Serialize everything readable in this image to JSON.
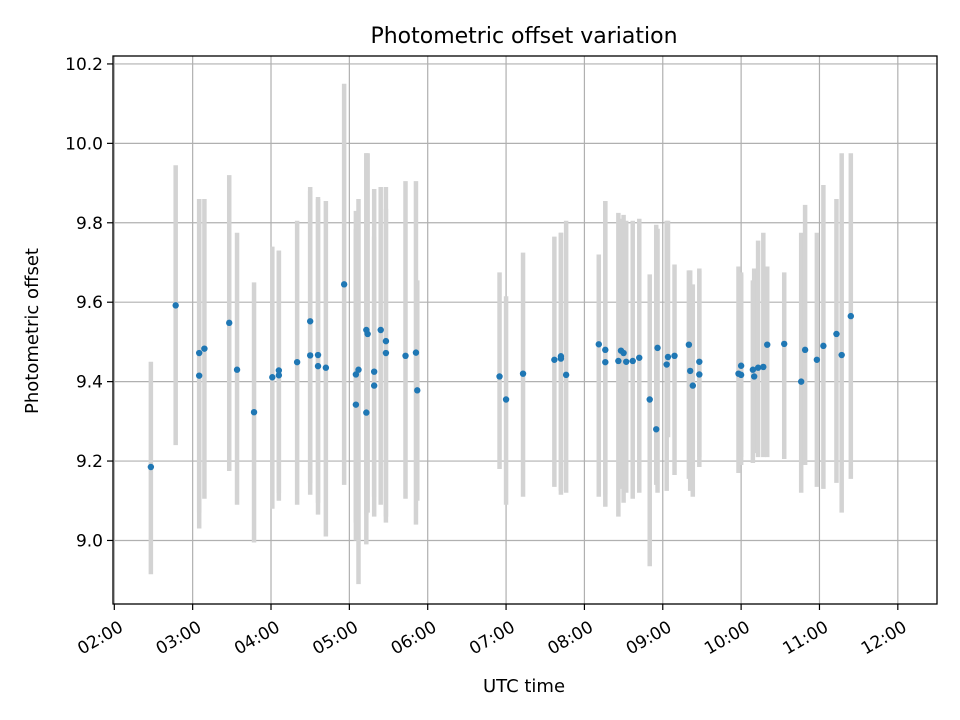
{
  "chart_data": {
    "type": "scatter",
    "title": "Photometric offset variation",
    "xlabel": "UTC time",
    "ylabel": "Photometric offset",
    "x_tick_labels": [
      "02:00",
      "03:00",
      "04:00",
      "05:00",
      "06:00",
      "07:00",
      "08:00",
      "09:00",
      "10:00",
      "11:00",
      "12:00"
    ],
    "y_tick_labels": [
      "9.0",
      "9.2",
      "9.4",
      "9.6",
      "9.8",
      "10.0",
      "10.2"
    ],
    "x_ticks": [
      "02:00",
      "03:00",
      "04:00",
      "05:00",
      "06:00",
      "07:00",
      "08:00",
      "09:00",
      "10:00",
      "11:00",
      "12:00"
    ],
    "y_ticks": [
      9.0,
      9.2,
      9.4,
      9.6,
      9.8,
      10.0,
      10.2
    ],
    "xlim": [
      "01:59",
      "12:30"
    ],
    "ylim": [
      8.84,
      10.22
    ],
    "grid": true,
    "colors": {
      "points": "#1f77b4",
      "errorbars": "#d3d3d3",
      "grid": "#b0b0b0"
    },
    "series": [
      {
        "x": [
          "02:28",
          "02:47",
          "03:05",
          "03:05",
          "03:09",
          "03:28",
          "03:34",
          "03:47",
          "04:01",
          "04:06",
          "04:06",
          "04:20",
          "04:30",
          "04:30",
          "04:36",
          "04:36",
          "04:42",
          "04:56",
          "05:05",
          "05:05",
          "05:07",
          "05:13",
          "05:13",
          "05:14",
          "05:19",
          "05:19",
          "05:24",
          "05:28",
          "05:28",
          "05:43",
          "05:51",
          "05:52",
          "06:55",
          "07:00",
          "07:13",
          "07:37",
          "07:42",
          "07:42",
          "07:46",
          "08:11",
          "08:16",
          "08:16",
          "08:26",
          "08:28",
          "08:30",
          "08:32",
          "08:37",
          "08:42",
          "08:50",
          "08:55",
          "08:56",
          "09:03",
          "09:04",
          "09:09",
          "09:20",
          "09:21",
          "09:23",
          "09:28",
          "09:28",
          "09:58",
          "10:00",
          "10:00",
          "10:09",
          "10:10",
          "10:13",
          "10:17",
          "10:20",
          "10:33",
          "10:46",
          "10:49",
          "10:58",
          "11:03",
          "11:13",
          "11:17",
          "11:24"
        ],
        "y": [
          9.185,
          9.592,
          9.472,
          9.415,
          9.483,
          9.548,
          9.43,
          9.323,
          9.411,
          9.416,
          9.428,
          9.449,
          9.552,
          9.466,
          9.439,
          9.467,
          9.435,
          9.645,
          9.342,
          9.418,
          9.43,
          9.322,
          9.53,
          9.52,
          9.39,
          9.425,
          9.53,
          9.502,
          9.472,
          9.465,
          9.473,
          9.378,
          9.413,
          9.355,
          9.42,
          9.455,
          9.458,
          9.464,
          9.417,
          9.494,
          9.449,
          9.48,
          9.452,
          9.478,
          9.472,
          9.45,
          9.452,
          9.46,
          9.355,
          9.28,
          9.485,
          9.443,
          9.462,
          9.465,
          9.493,
          9.427,
          9.39,
          9.418,
          9.45,
          9.42,
          9.417,
          9.44,
          9.43,
          9.413,
          9.435,
          9.437,
          9.493,
          9.495,
          9.4,
          9.48,
          9.455,
          9.49,
          9.52,
          9.467,
          9.565
        ],
        "y_low": [
          8.915,
          9.24,
          9.03,
          9.07,
          9.105,
          9.175,
          9.09,
          8.995,
          9.08,
          9.1,
          9.12,
          9.09,
          9.145,
          9.115,
          9.095,
          9.065,
          9.01,
          9.14,
          9.045,
          9.0,
          8.89,
          9.065,
          8.99,
          9.07,
          9.11,
          9.06,
          9.09,
          9.06,
          9.045,
          9.105,
          9.04,
          9.1,
          9.18,
          9.09,
          9.11,
          9.135,
          9.125,
          9.115,
          9.12,
          9.11,
          9.115,
          9.085,
          9.06,
          9.13,
          9.095,
          9.12,
          9.105,
          9.12,
          8.935,
          9.14,
          9.12,
          9.125,
          9.26,
          9.165,
          9.155,
          9.125,
          9.11,
          9.21,
          9.185,
          9.17,
          9.19,
          9.21,
          9.195,
          9.22,
          9.21,
          9.21,
          9.21,
          9.205,
          9.12,
          9.19,
          9.135,
          9.13,
          9.145,
          9.07,
          9.155
        ],
        "y_high": [
          9.45,
          9.945,
          9.86,
          9.86,
          9.86,
          9.92,
          9.775,
          9.65,
          9.74,
          9.73,
          9.73,
          9.805,
          9.89,
          9.88,
          9.86,
          9.865,
          9.855,
          10.15,
          9.785,
          9.83,
          9.86,
          9.975,
          9.975,
          9.975,
          9.765,
          9.885,
          9.89,
          9.89,
          9.835,
          9.905,
          9.905,
          9.655,
          9.675,
          9.615,
          9.725,
          9.765,
          9.775,
          9.775,
          9.805,
          9.72,
          9.855,
          9.855,
          9.825,
          9.81,
          9.82,
          9.805,
          9.805,
          9.81,
          9.67,
          9.795,
          9.785,
          9.805,
          9.805,
          9.695,
          9.68,
          9.68,
          9.645,
          9.68,
          9.685,
          9.69,
          9.67,
          9.675,
          9.655,
          9.685,
          9.755,
          9.775,
          9.69,
          9.675,
          9.775,
          9.845,
          9.775,
          9.895,
          9.86,
          9.975,
          9.975
        ]
      }
    ]
  }
}
